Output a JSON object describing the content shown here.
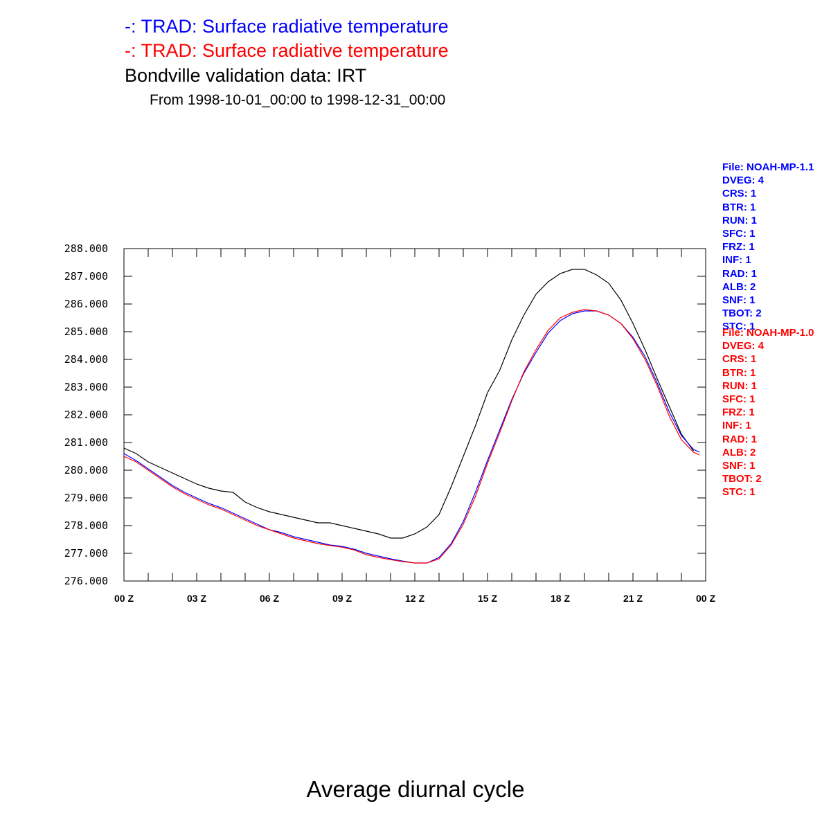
{
  "titles": {
    "line1": "-: TRAD: Surface radiative temperature",
    "line2": "-: TRAD: Surface radiative temperature",
    "line3": "Bondville validation data: IRT",
    "line4": "From 1998-10-01_00:00 to 1998-12-31_00:00"
  },
  "bottom_title": "Average diurnal cycle",
  "colors": {
    "blue": "#0000ff",
    "red": "#ff0000",
    "black": "#000000"
  },
  "legend_blue": [
    "File: NOAH-MP-1.1",
    "DVEG: 4",
    "CRS: 1",
    "BTR: 1",
    "RUN: 1",
    "SFC: 1",
    "FRZ: 1",
    "INF: 1",
    "RAD: 1",
    "ALB: 2",
    "SNF: 1",
    "TBOT: 2",
    "STC: 1"
  ],
  "legend_red": [
    "File: NOAH-MP-1.0",
    "DVEG: 4",
    "CRS: 1",
    "BTR: 1",
    "RUN: 1",
    "SFC: 1",
    "FRZ: 1",
    "INF: 1",
    "RAD: 1",
    "ALB: 2",
    "SNF: 1",
    "TBOT: 2",
    "STC: 1"
  ],
  "chart_data": {
    "type": "line",
    "title": "Average diurnal cycle",
    "xlabel": "",
    "ylabel": "",
    "xlim": [
      0,
      24
    ],
    "ylim": [
      276,
      288
    ],
    "x_ticks": [
      0,
      3,
      6,
      9,
      12,
      15,
      18,
      21,
      24
    ],
    "x_tick_labels": [
      "00 Z",
      "03 Z",
      "06 Z",
      "09 Z",
      "12 Z",
      "15 Z",
      "18 Z",
      "21 Z",
      "00 Z"
    ],
    "y_ticks": [
      276,
      277,
      278,
      279,
      280,
      281,
      282,
      283,
      284,
      285,
      286,
      287,
      288
    ],
    "y_tick_labels": [
      "276.000",
      "277.000",
      "278.000",
      "279.000",
      "280.000",
      "281.000",
      "282.000",
      "283.000",
      "284.000",
      "285.000",
      "286.000",
      "287.000",
      "288.000"
    ],
    "grid": false,
    "series": [
      {
        "color": "#000000",
        "x": [
          0,
          0.5,
          1,
          1.5,
          2,
          2.5,
          3,
          3.5,
          4,
          4.5,
          5,
          5.5,
          6,
          6.5,
          7,
          7.5,
          8,
          8.5,
          9,
          9.5,
          10,
          10.5,
          11,
          11.5,
          12,
          12.5,
          13,
          13.5,
          14,
          14.5,
          15,
          15.5,
          16,
          16.5,
          17,
          17.5,
          18,
          18.5,
          19,
          19.5,
          20,
          20.5,
          21,
          21.5,
          22,
          22.5,
          23,
          23.5
        ],
        "values": [
          280.8,
          280.6,
          280.3,
          280.1,
          279.9,
          279.7,
          279.5,
          279.35,
          279.25,
          279.2,
          278.85,
          278.65,
          278.5,
          278.4,
          278.3,
          278.2,
          278.1,
          278.1,
          278.0,
          277.9,
          277.8,
          277.7,
          277.55,
          277.55,
          277.7,
          277.95,
          278.4,
          279.4,
          280.5,
          281.6,
          282.8,
          283.6,
          284.7,
          285.6,
          286.35,
          286.8,
          287.1,
          287.25,
          287.25,
          287.05,
          286.75,
          286.15,
          285.3,
          284.35,
          283.3,
          282.3,
          281.3,
          280.7
        ]
      },
      {
        "color": "#0000ff",
        "x": [
          0,
          0.5,
          1,
          1.5,
          2,
          2.5,
          3,
          3.5,
          4,
          4.5,
          5,
          5.5,
          6,
          6.5,
          7,
          7.5,
          8,
          8.5,
          9,
          9.5,
          10,
          10.5,
          11,
          11.5,
          12,
          12.5,
          13,
          13.5,
          14,
          14.5,
          15,
          15.5,
          16,
          16.5,
          17,
          17.5,
          18,
          18.5,
          19,
          19.5,
          20,
          20.5,
          21,
          21.5,
          22,
          22.5,
          23,
          23.5,
          23.75
        ],
        "values": [
          280.6,
          280.35,
          280.05,
          279.75,
          279.45,
          279.2,
          279.0,
          278.8,
          278.65,
          278.45,
          278.25,
          278.05,
          277.85,
          277.75,
          277.6,
          277.5,
          277.4,
          277.3,
          277.25,
          277.15,
          277.0,
          276.9,
          276.8,
          276.72,
          276.65,
          276.65,
          276.85,
          277.35,
          278.15,
          279.2,
          280.35,
          281.45,
          282.55,
          283.5,
          284.25,
          284.95,
          285.4,
          285.65,
          285.75,
          285.75,
          285.6,
          285.3,
          284.8,
          284.1,
          283.15,
          282.1,
          281.25,
          280.75,
          280.65
        ]
      },
      {
        "color": "#ff0000",
        "x": [
          0,
          0.5,
          1,
          1.5,
          2,
          2.5,
          3,
          3.5,
          4,
          4.5,
          5,
          5.5,
          6,
          6.5,
          7,
          7.5,
          8,
          8.5,
          9,
          9.5,
          10,
          10.5,
          11,
          11.5,
          12,
          12.5,
          13,
          13.5,
          14,
          14.5,
          15,
          15.5,
          16,
          16.5,
          17,
          17.5,
          18,
          18.5,
          19,
          19.5,
          20,
          20.5,
          21,
          21.5,
          22,
          22.5,
          23,
          23.5,
          23.75
        ],
        "values": [
          280.5,
          280.3,
          280.0,
          279.7,
          279.4,
          279.15,
          278.95,
          278.75,
          278.6,
          278.4,
          278.2,
          278.0,
          277.85,
          277.7,
          277.55,
          277.45,
          277.35,
          277.28,
          277.22,
          277.12,
          276.95,
          276.85,
          276.77,
          276.7,
          276.65,
          276.65,
          276.8,
          277.3,
          278.05,
          279.05,
          280.25,
          281.35,
          282.5,
          283.55,
          284.35,
          285.05,
          285.5,
          285.7,
          285.8,
          285.75,
          285.6,
          285.3,
          284.75,
          284.0,
          283.05,
          281.95,
          281.1,
          280.65,
          280.55
        ]
      }
    ]
  }
}
